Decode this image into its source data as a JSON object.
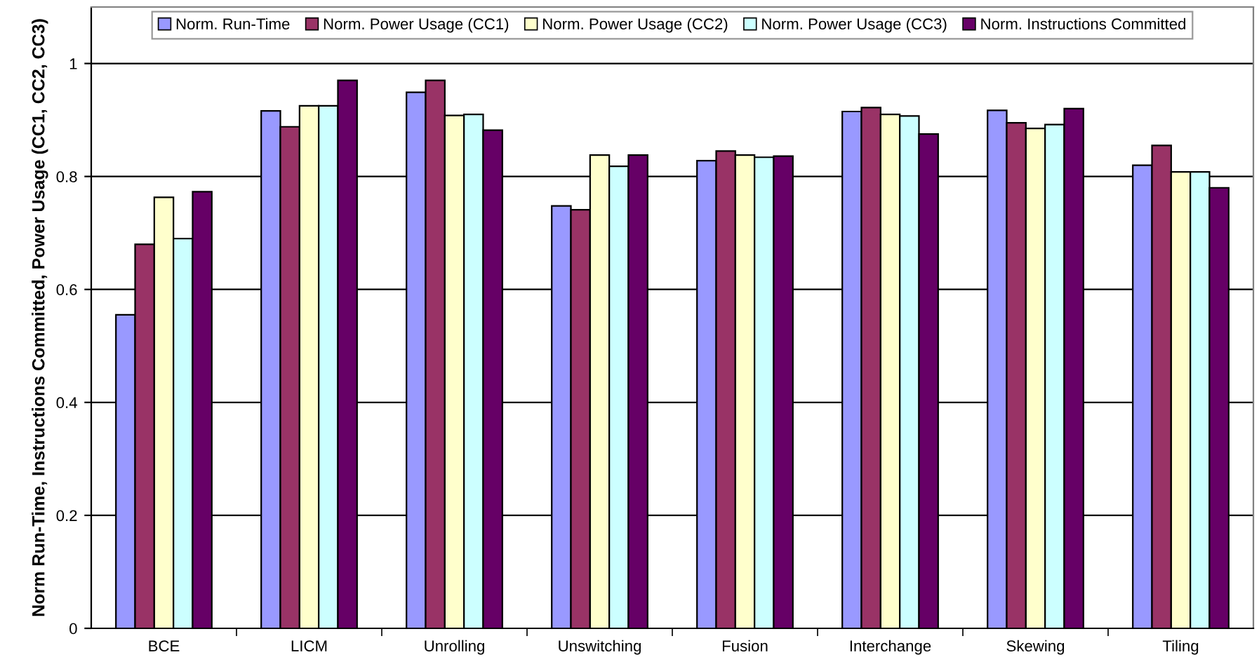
{
  "chart_data": {
    "type": "bar",
    "ylabel": "Norm Run-Time, Instructions Committed, Power Usage (CC1, CC2, CC3)",
    "categories": [
      "BCE",
      "LICM",
      "Unrolling",
      "Unswitching",
      "Fusion",
      "Interchange",
      "Skewing",
      "Tiling"
    ],
    "series": [
      {
        "name": "Norm. Run-Time",
        "color": "#9999ff",
        "values": [
          0.555,
          0.916,
          0.949,
          0.748,
          0.828,
          0.915,
          0.917,
          0.82
        ]
      },
      {
        "name": "Norm. Power Usage (CC1)",
        "color": "#993366",
        "values": [
          0.68,
          0.888,
          0.97,
          0.741,
          0.845,
          0.922,
          0.895,
          0.855
        ]
      },
      {
        "name": "Norm. Power Usage (CC2)",
        "color": "#ffffcc",
        "values": [
          0.763,
          0.925,
          0.908,
          0.838,
          0.838,
          0.91,
          0.885,
          0.808
        ]
      },
      {
        "name": "Norm. Power Usage (CC3)",
        "color": "#ccffff",
        "values": [
          0.69,
          0.925,
          0.91,
          0.818,
          0.834,
          0.907,
          0.892,
          0.808
        ]
      },
      {
        "name": "Norm. Instructions Committed",
        "color": "#660066",
        "values": [
          0.773,
          0.97,
          0.882,
          0.838,
          0.836,
          0.875,
          0.92,
          0.78
        ]
      }
    ],
    "ylim": [
      0,
      1.1
    ],
    "yticks": [
      0,
      0.2,
      0.4,
      0.6,
      0.8,
      1
    ],
    "grid": "y",
    "legend": "top"
  }
}
